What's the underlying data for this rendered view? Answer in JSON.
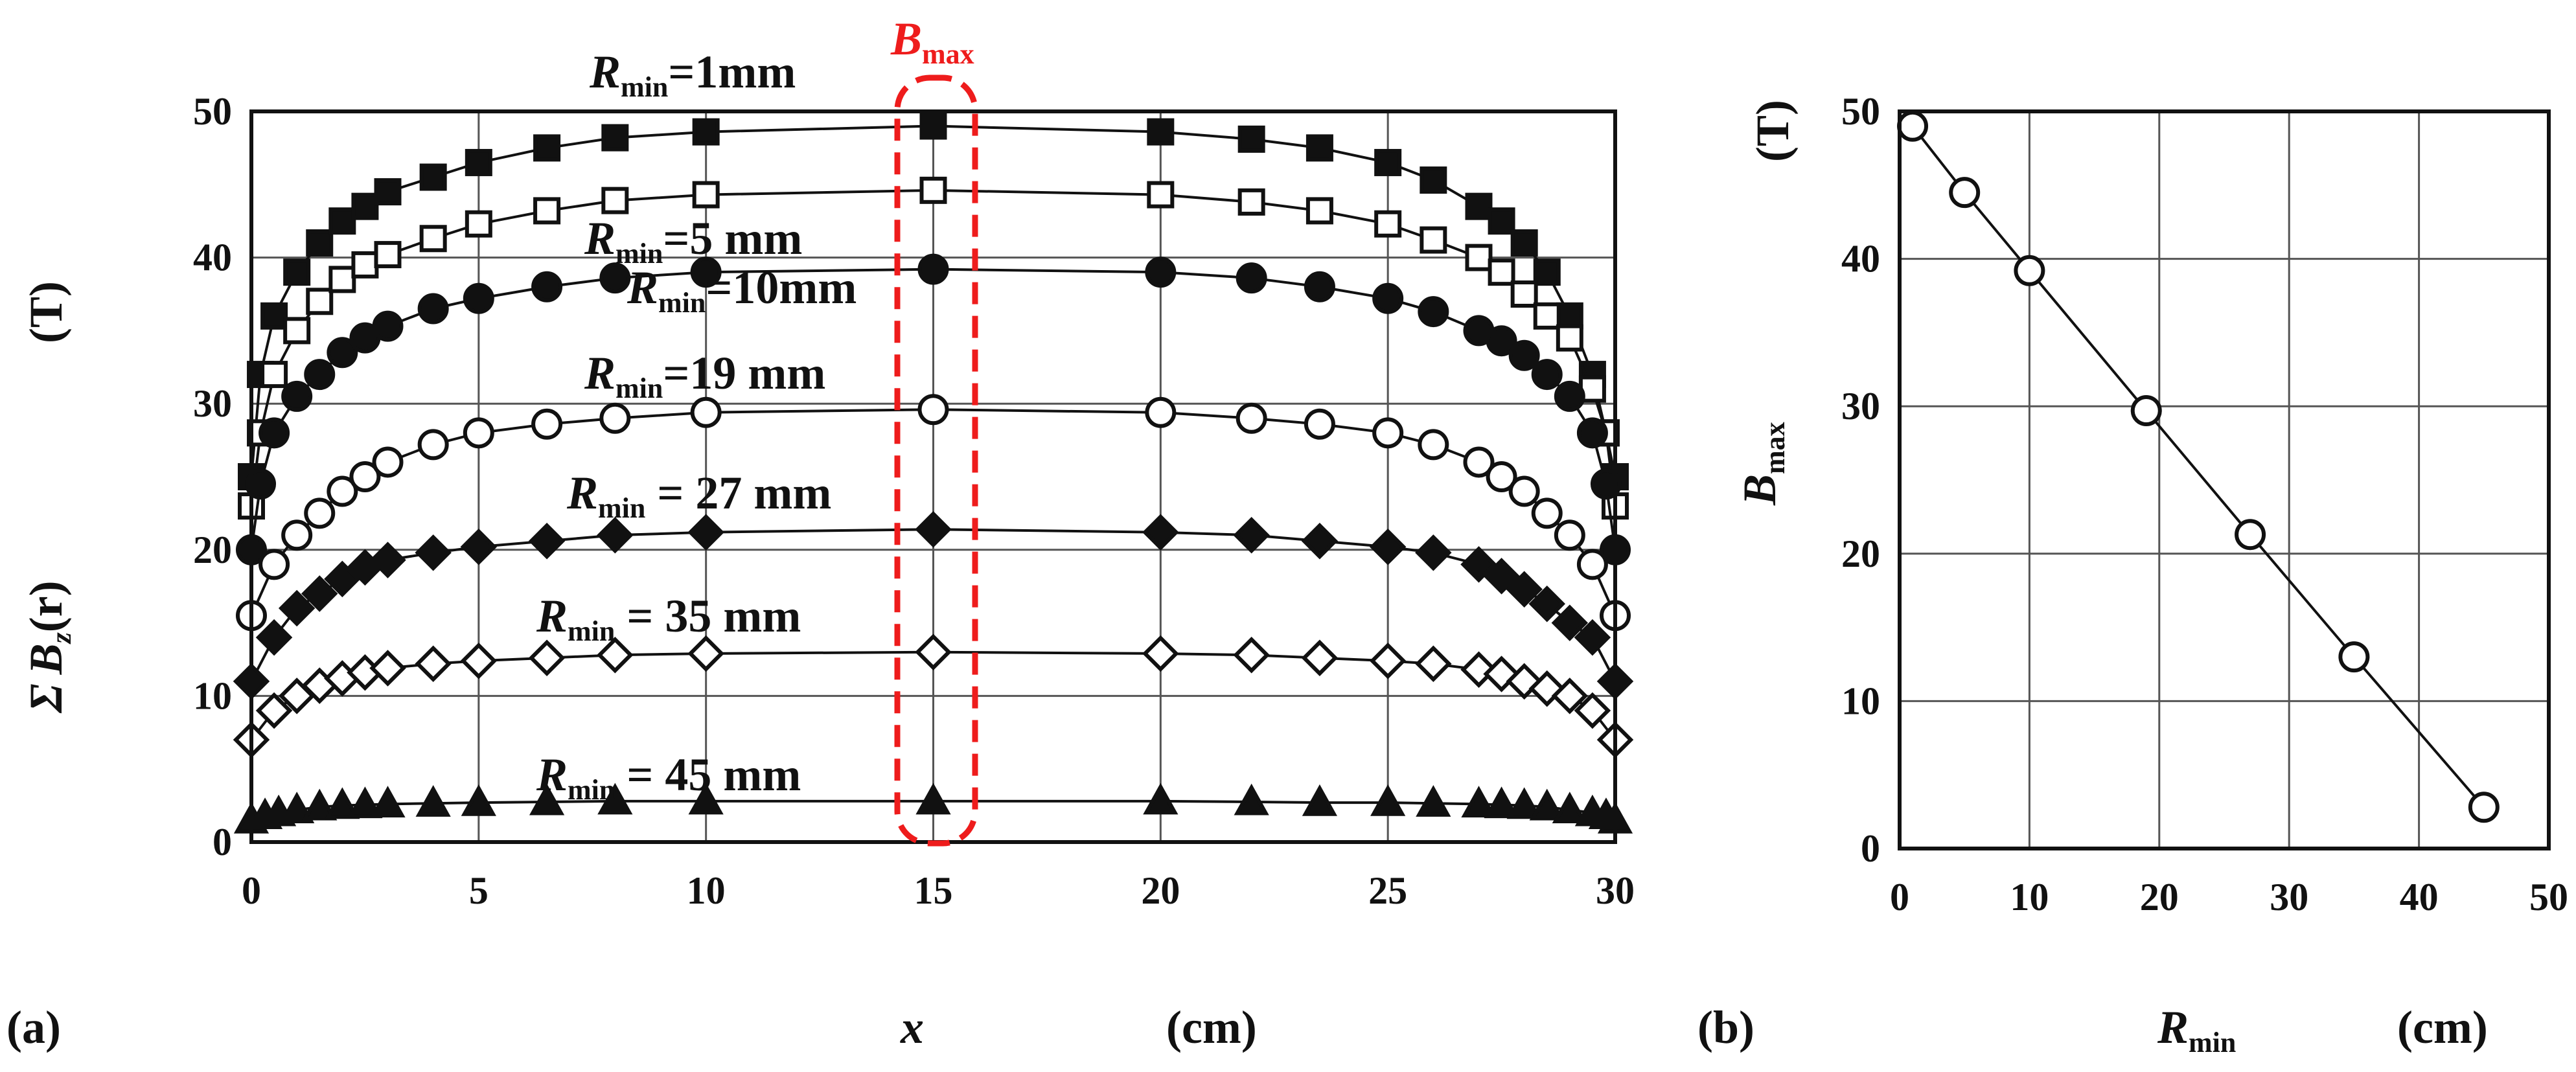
{
  "chart_data": [
    {
      "panel": "(a)",
      "type": "line",
      "xlabel": {
        "symbol": "x",
        "unit": "(cm)"
      },
      "ylabel": {
        "sigma": "Σ",
        "symbol": "B",
        "sub": "z",
        "arg": "(r)",
        "unit": "(T)"
      },
      "xlim": [
        0,
        30
      ],
      "ylim": [
        0,
        50
      ],
      "xticks": [
        "0",
        "5",
        "10",
        "15",
        "20",
        "25",
        "30"
      ],
      "yticks": [
        "0",
        "10",
        "20",
        "30",
        "40",
        "50"
      ],
      "grid": true,
      "highlight": {
        "label": "B",
        "sub": "max",
        "x": 15
      },
      "series": [
        {
          "name": "Rmin=1mm",
          "label": {
            "R": "R",
            "sub": "min",
            "rest": "=1mm"
          },
          "marker": "square-filled",
          "x": [
            0,
            0.2,
            0.5,
            1,
            1.5,
            2,
            2.5,
            3,
            4,
            5,
            6.5,
            8,
            10,
            15,
            20,
            22,
            23.5,
            25,
            26,
            27,
            27.5,
            28,
            28.5,
            29,
            29.5,
            29.8,
            30
          ],
          "y": [
            25,
            32,
            36,
            39,
            41,
            42.5,
            43.5,
            44.5,
            45.5,
            46.5,
            47.5,
            48.2,
            48.6,
            49,
            48.6,
            48.1,
            47.5,
            46.5,
            45.3,
            43.5,
            42.5,
            41,
            39,
            36,
            32,
            28,
            25
          ]
        },
        {
          "name": "Rmin=5 mm",
          "label": {
            "R": "R",
            "sub": "min",
            "rest": "=5 mm"
          },
          "marker": "square-open",
          "x": [
            0,
            0.2,
            0.5,
            1,
            1.5,
            2,
            2.5,
            3,
            4,
            5,
            6.5,
            8,
            10,
            15,
            20,
            22,
            23.5,
            25,
            26,
            27,
            27.5,
            28,
            28.5,
            29,
            29.5,
            29.8,
            30
          ],
          "y": [
            23,
            28,
            32,
            35,
            37,
            38.5,
            39.5,
            40.2,
            41.3,
            42.3,
            43.2,
            43.9,
            44.3,
            44.6,
            44.3,
            43.8,
            43.2,
            42.3,
            41.2,
            40,
            39,
            37.5,
            36,
            34.5,
            31,
            28,
            23
          ]
        },
        {
          "name": "Rmin=10mm",
          "label": {
            "R": "R",
            "sub": "min",
            "rest": "=10mm"
          },
          "marker": "circle-filled",
          "x": [
            0,
            0.2,
            0.5,
            1,
            1.5,
            2,
            2.5,
            3,
            4,
            5,
            6.5,
            8,
            10,
            15,
            20,
            22,
            23.5,
            25,
            26,
            27,
            27.5,
            28,
            28.5,
            29,
            29.5,
            29.8,
            30
          ],
          "y": [
            20,
            24.5,
            28,
            30.5,
            32,
            33.5,
            34.5,
            35.3,
            36.5,
            37.2,
            38,
            38.6,
            39,
            39.2,
            39,
            38.6,
            38,
            37.2,
            36.3,
            35,
            34.3,
            33.3,
            32,
            30.5,
            28,
            24.5,
            20
          ]
        },
        {
          "name": "Rmin=19 mm",
          "label": {
            "R": "R",
            "sub": "min",
            "rest": "=19 mm"
          },
          "marker": "circle-open",
          "x": [
            0,
            0.5,
            1,
            1.5,
            2,
            2.5,
            3,
            4,
            5,
            6.5,
            8,
            10,
            15,
            20,
            22,
            23.5,
            25,
            26,
            27,
            27.5,
            28,
            28.5,
            29,
            29.5,
            30
          ],
          "y": [
            15.5,
            19,
            21,
            22.5,
            24,
            25,
            26,
            27.2,
            28,
            28.6,
            29,
            29.4,
            29.6,
            29.4,
            29,
            28.6,
            28,
            27.2,
            26,
            25,
            24,
            22.5,
            21,
            19,
            15.5
          ]
        },
        {
          "name": "Rmin = 27 mm",
          "label": {
            "R": "R",
            "sub": "min",
            "rest": " = 27 mm"
          },
          "marker": "diamond-filled",
          "x": [
            0,
            0.5,
            1,
            1.5,
            2,
            2.5,
            3,
            4,
            5,
            6.5,
            8,
            10,
            15,
            20,
            22,
            23.5,
            25,
            26,
            27,
            27.5,
            28,
            28.5,
            29,
            29.5,
            30
          ],
          "y": [
            11,
            14,
            16,
            17,
            18,
            18.8,
            19.3,
            19.8,
            20.2,
            20.6,
            21,
            21.2,
            21.4,
            21.2,
            21,
            20.6,
            20.2,
            19.8,
            19,
            18.2,
            17.3,
            16.3,
            15,
            14,
            11
          ]
        },
        {
          "name": "Rmin = 35 mm",
          "label": {
            "R": "R",
            "sub": "min",
            "rest": " = 35 mm"
          },
          "marker": "diamond-open",
          "x": [
            0,
            0.5,
            1,
            1.5,
            2,
            2.5,
            3,
            4,
            5,
            6.5,
            8,
            10,
            15,
            20,
            22,
            23.5,
            25,
            26,
            27,
            27.5,
            28,
            28.5,
            29,
            29.5,
            30
          ],
          "y": [
            7,
            9,
            10,
            10.7,
            11.2,
            11.6,
            11.9,
            12.2,
            12.4,
            12.6,
            12.8,
            12.9,
            13,
            12.9,
            12.8,
            12.6,
            12.4,
            12.2,
            11.8,
            11.5,
            11,
            10.5,
            10,
            9,
            7
          ]
        },
        {
          "name": "Rmin = 45 mm",
          "label": {
            "R": "R",
            "sub": "min",
            "rest": " = 45 mm"
          },
          "marker": "triangle-filled",
          "x": [
            0,
            0.3,
            0.6,
            1,
            1.5,
            2,
            2.5,
            3,
            4,
            5,
            6.5,
            8,
            10,
            15,
            20,
            22,
            23.5,
            25,
            26,
            27,
            27.5,
            28,
            28.5,
            29,
            29.5,
            29.8,
            30
          ],
          "y": [
            1.5,
            1.8,
            2,
            2.2,
            2.4,
            2.5,
            2.55,
            2.6,
            2.65,
            2.7,
            2.75,
            2.8,
            2.8,
            2.8,
            2.8,
            2.75,
            2.7,
            2.7,
            2.65,
            2.6,
            2.55,
            2.5,
            2.4,
            2.2,
            2,
            1.8,
            1.5
          ]
        }
      ]
    },
    {
      "panel": "(b)",
      "type": "line",
      "xlabel": {
        "symbol": "R",
        "sub": "min",
        "unit": "(cm)"
      },
      "ylabel": {
        "symbol": "B",
        "sub": "max",
        "unit": "(T)"
      },
      "xlim": [
        0,
        50
      ],
      "ylim": [
        0,
        50
      ],
      "xticks": [
        "0",
        "10",
        "20",
        "30",
        "40",
        "50"
      ],
      "yticks": [
        "0",
        "10",
        "20",
        "30",
        "40",
        "50"
      ],
      "grid": true,
      "series": [
        {
          "name": "Bmax",
          "marker": "circle-open",
          "x": [
            1,
            5,
            10,
            19,
            27,
            35,
            45
          ],
          "y": [
            49,
            44.5,
            39.2,
            29.7,
            21.3,
            13,
            2.8
          ]
        }
      ]
    }
  ]
}
